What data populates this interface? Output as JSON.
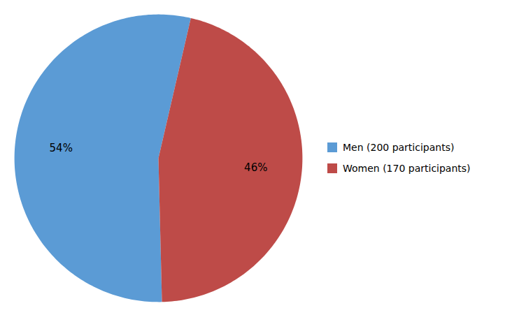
{
  "chart_data": {
    "type": "pie",
    "categories": [
      "Men (200 participants)",
      "Women (170 participants)"
    ],
    "values": [
      54,
      46
    ],
    "value_labels": [
      "54%",
      "46%"
    ],
    "colors": [
      "#5B9BD5",
      "#BE4B48"
    ],
    "data_labels": true,
    "legend": "right"
  }
}
